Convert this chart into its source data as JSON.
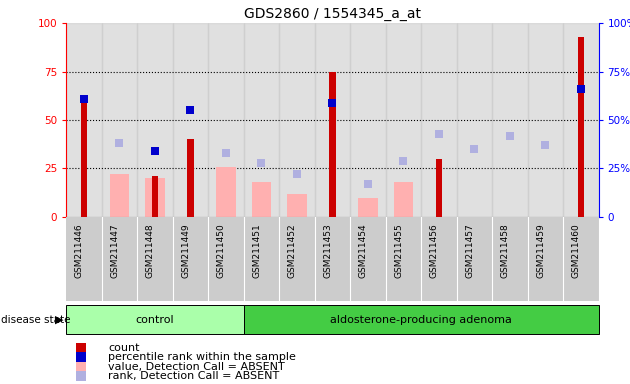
{
  "title": "GDS2860 / 1554345_a_at",
  "samples": [
    "GSM211446",
    "GSM211447",
    "GSM211448",
    "GSM211449",
    "GSM211450",
    "GSM211451",
    "GSM211452",
    "GSM211453",
    "GSM211454",
    "GSM211455",
    "GSM211456",
    "GSM211457",
    "GSM211458",
    "GSM211459",
    "GSM211460"
  ],
  "count": [
    62,
    0,
    21,
    40,
    0,
    0,
    0,
    75,
    0,
    0,
    30,
    0,
    0,
    0,
    93
  ],
  "percentile_rank": [
    61,
    null,
    34,
    55,
    null,
    null,
    null,
    59,
    null,
    null,
    null,
    null,
    null,
    null,
    66
  ],
  "value_absent": [
    null,
    22,
    20,
    null,
    26,
    18,
    12,
    null,
    10,
    18,
    null,
    null,
    null,
    null,
    null
  ],
  "rank_absent": [
    null,
    38,
    null,
    null,
    33,
    28,
    22,
    null,
    17,
    29,
    43,
    35,
    42,
    37,
    null
  ],
  "n_control": 5,
  "n_adenoma": 10,
  "ylim": [
    0,
    100
  ],
  "yticks": [
    0,
    25,
    50,
    75,
    100
  ],
  "count_color": "#cc0000",
  "percentile_color": "#0000cc",
  "value_absent_color": "#ffb0b0",
  "rank_absent_color": "#b0b0e0",
  "bg_color": "#cccccc",
  "control_bg": "#aaffaa",
  "adenoma_bg": "#44cc44",
  "legend_items": [
    "count",
    "percentile rank within the sample",
    "value, Detection Call = ABSENT",
    "rank, Detection Call = ABSENT"
  ]
}
